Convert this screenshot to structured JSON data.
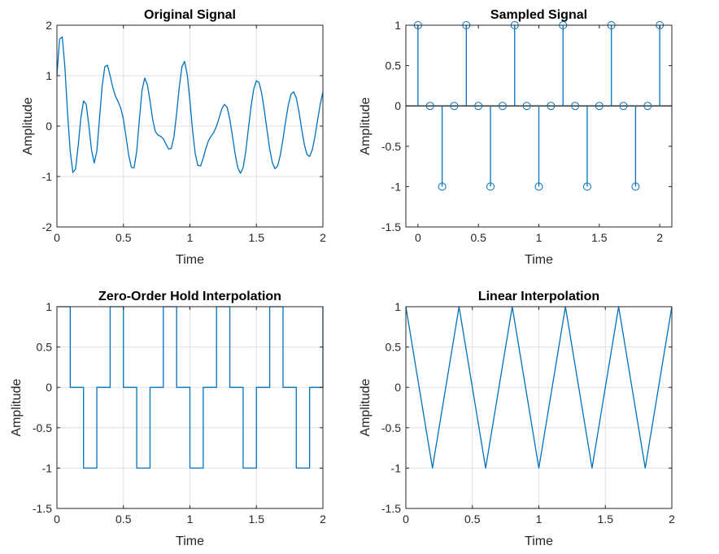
{
  "colors": {
    "series": "#0072BD",
    "axes": "#262626",
    "grid": "#dfdfdf"
  },
  "chart_data": [
    {
      "id": "original",
      "type": "line",
      "title": "Original Signal",
      "xlabel": "Time",
      "ylabel": "Amplitude",
      "xlim": [
        0,
        2
      ],
      "ylim": [
        -2,
        2
      ],
      "xticks": [
        0,
        0.5,
        1,
        1.5,
        2
      ],
      "xtick_labels": [
        "0",
        "0.5",
        "1",
        "1.5",
        "2"
      ],
      "yticks": [
        -2,
        -1,
        0,
        1,
        2
      ],
      "ytick_labels": [
        "-2",
        "-1",
        "0",
        "1",
        "2"
      ],
      "grid": true,
      "x": [
        0,
        0.02,
        0.04,
        0.06,
        0.08,
        0.1,
        0.12,
        0.14,
        0.16,
        0.18,
        0.2,
        0.22,
        0.24,
        0.26,
        0.28,
        0.3,
        0.32,
        0.34,
        0.36,
        0.38,
        0.4,
        0.42,
        0.44,
        0.46,
        0.48,
        0.5,
        0.52,
        0.54,
        0.56,
        0.58,
        0.6,
        0.62,
        0.64,
        0.66,
        0.68,
        0.7,
        0.72,
        0.74,
        0.76,
        0.78,
        0.8,
        0.82,
        0.84,
        0.86,
        0.88,
        0.9,
        0.92,
        0.94,
        0.96,
        0.98,
        1.0,
        1.02,
        1.04,
        1.06,
        1.08,
        1.1,
        1.12,
        1.14,
        1.16,
        1.18,
        1.2,
        1.22,
        1.24,
        1.26,
        1.28,
        1.3,
        1.32,
        1.34,
        1.36,
        1.38,
        1.4,
        1.42,
        1.44,
        1.46,
        1.48,
        1.5,
        1.52,
        1.54,
        1.56,
        1.58,
        1.6,
        1.62,
        1.64,
        1.66,
        1.68,
        1.7,
        1.72,
        1.74,
        1.76,
        1.78,
        1.8,
        1.82,
        1.84,
        1.86,
        1.88,
        1.9,
        1.92,
        1.94,
        1.96,
        1.98,
        2.0
      ],
      "y": [
        1.0,
        1.722,
        1.769,
        1.162,
        0.252,
        -0.5,
        -0.92,
        -0.851,
        -0.387,
        0.161,
        0.5,
        0.434,
        0.011,
        -0.471,
        -0.731,
        -0.5,
        0.142,
        0.792,
        1.176,
        1.209,
        1.0,
        0.766,
        0.594,
        0.483,
        0.356,
        0.134,
        -0.221,
        -0.585,
        -0.818,
        -0.827,
        -0.5,
        0.131,
        0.708,
        0.953,
        0.823,
        0.5,
        0.129,
        -0.106,
        -0.179,
        -0.203,
        -0.25,
        -0.358,
        -0.456,
        -0.441,
        -0.213,
        0.25,
        0.774,
        1.179,
        1.283,
        1.021,
        0.5,
        -0.085,
        -0.548,
        -0.781,
        -0.791,
        -0.634,
        -0.44,
        -0.286,
        -0.197,
        -0.122,
        0.0,
        0.165,
        0.342,
        0.431,
        0.372,
        0.134,
        -0.197,
        -0.553,
        -0.823,
        -0.934,
        -0.827,
        -0.501,
        -0.047,
        0.397,
        0.735,
        0.898,
        0.862,
        0.646,
        0.306,
        -0.086,
        -0.454,
        -0.727,
        -0.846,
        -0.788,
        -0.573,
        -0.255,
        0.099,
        0.419,
        0.63,
        0.681,
        0.556,
        0.285,
        -0.052,
        -0.362,
        -0.561,
        -0.603,
        -0.474,
        -0.211,
        0.118,
        0.432,
        0.675
      ]
    },
    {
      "id": "sampled",
      "type": "scatter",
      "title": "Sampled Signal",
      "xlabel": "Time",
      "ylabel": "Amplitude",
      "xlim": [
        -0.1,
        2.1
      ],
      "ylim": [
        -1.5,
        1
      ],
      "xticks": [
        0,
        0.5,
        1,
        1.5,
        2
      ],
      "xtick_labels": [
        "0",
        "0.5",
        "1",
        "1.5",
        "2"
      ],
      "yticks": [
        -1.5,
        -1,
        -0.5,
        0,
        0.5,
        1
      ],
      "ytick_labels": [
        "-1.5",
        "-1",
        "-0.5",
        "0",
        "0.5",
        "1"
      ],
      "grid": false,
      "x": [
        0,
        0.1,
        0.2,
        0.3,
        0.4,
        0.5,
        0.6,
        0.7,
        0.8,
        0.9,
        1.0,
        1.1,
        1.2,
        1.3,
        1.4,
        1.5,
        1.6,
        1.7,
        1.8,
        1.9,
        2.0
      ],
      "y": [
        1,
        0,
        -1,
        0,
        1,
        0,
        -1,
        0,
        1,
        0,
        -1,
        0,
        1,
        0,
        -1,
        0,
        1,
        0,
        -1,
        0,
        1
      ]
    },
    {
      "id": "zoh",
      "type": "line",
      "title": "Zero-Order Hold Interpolation",
      "xlabel": "Time",
      "ylabel": "Amplitude",
      "xlim": [
        0,
        2
      ],
      "ylim": [
        -1.5,
        1
      ],
      "xticks": [
        0,
        0.5,
        1,
        1.5,
        2
      ],
      "xtick_labels": [
        "0",
        "0.5",
        "1",
        "1.5",
        "2"
      ],
      "yticks": [
        -1.5,
        -1,
        -0.5,
        0,
        0.5,
        1
      ],
      "ytick_labels": [
        "-1.5",
        "-1",
        "-0.5",
        "0",
        "0.5",
        "1"
      ],
      "grid": true,
      "x": [
        0,
        0.1,
        0.1,
        0.2,
        0.2,
        0.3,
        0.3,
        0.4,
        0.4,
        0.5,
        0.5,
        0.6,
        0.6,
        0.7,
        0.7,
        0.8,
        0.8,
        0.9,
        0.9,
        1.0,
        1.0,
        1.1,
        1.1,
        1.2,
        1.2,
        1.3,
        1.3,
        1.4,
        1.4,
        1.5,
        1.5,
        1.6,
        1.6,
        1.7,
        1.7,
        1.8,
        1.8,
        1.9,
        1.9,
        2.0,
        2.0
      ],
      "y": [
        1,
        1,
        0,
        0,
        -1,
        -1,
        0,
        0,
        1,
        1,
        0,
        0,
        -1,
        -1,
        0,
        0,
        1,
        1,
        0,
        0,
        -1,
        -1,
        0,
        0,
        1,
        1,
        0,
        0,
        -1,
        -1,
        0,
        0,
        1,
        1,
        0,
        0,
        -1,
        -1,
        0,
        0,
        1
      ]
    },
    {
      "id": "linear",
      "type": "line",
      "title": "Linear Interpolation",
      "xlabel": "Time",
      "ylabel": "Amplitude",
      "xlim": [
        0,
        2
      ],
      "ylim": [
        -1.5,
        1
      ],
      "xticks": [
        0,
        0.5,
        1,
        1.5,
        2
      ],
      "xtick_labels": [
        "0",
        "0.5",
        "1",
        "1.5",
        "2"
      ],
      "yticks": [
        -1.5,
        -1,
        -0.5,
        0,
        0.5,
        1
      ],
      "ytick_labels": [
        "-1.5",
        "-1",
        "-0.5",
        "0",
        "0.5",
        "1"
      ],
      "grid": true,
      "x": [
        0,
        0.2,
        0.4,
        0.6,
        0.8,
        1.0,
        1.2,
        1.4,
        1.6,
        1.8,
        2.0
      ],
      "y": [
        1,
        -1,
        1,
        -1,
        1,
        -1,
        1,
        -1,
        1,
        -1,
        1
      ]
    }
  ]
}
